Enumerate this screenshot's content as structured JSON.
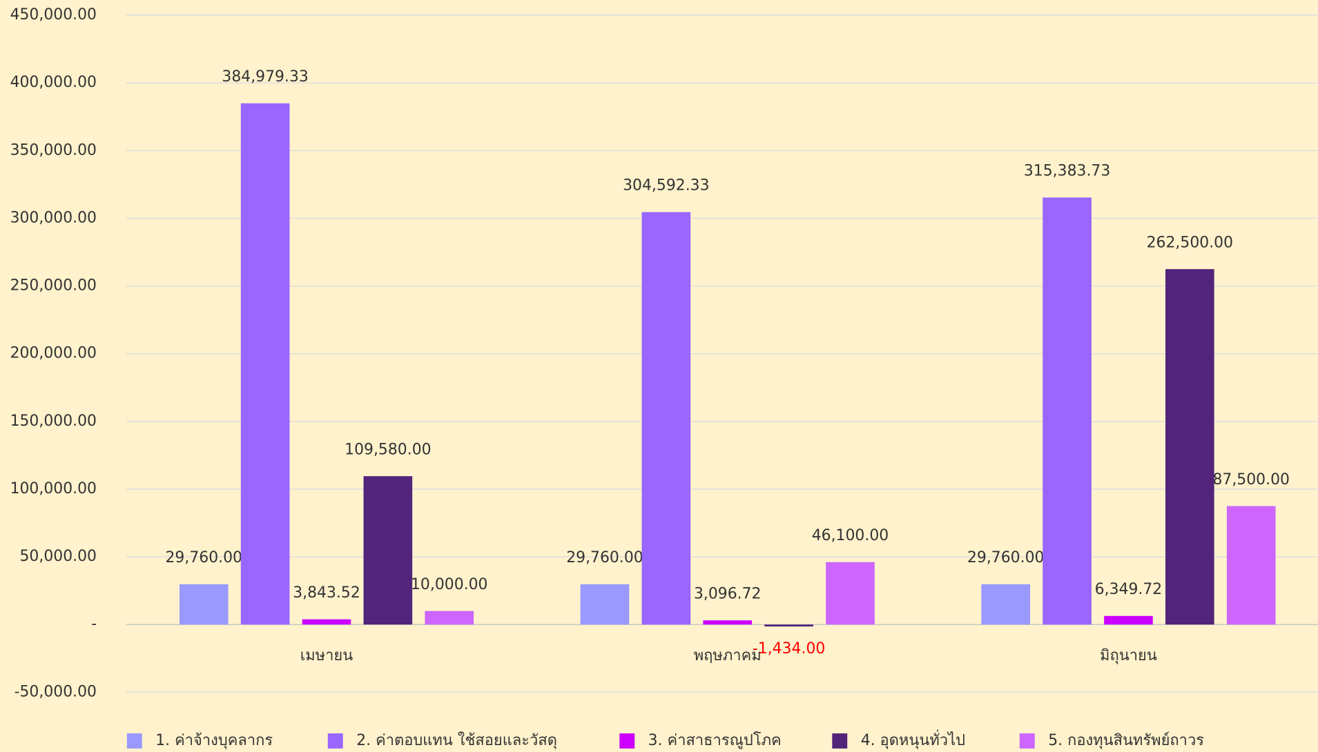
{
  "chart_data": {
    "type": "bar",
    "categories": [
      "เมษายน",
      "พฤษภาคม",
      "มิถุนายน"
    ],
    "series": [
      {
        "name": "1. ค่าจ้างบุคลากร",
        "color": "#9999ff",
        "values": [
          29760,
          29760,
          29760
        ],
        "value_labels": [
          "29,760.00",
          "29,760.00",
          "29,760.00"
        ]
      },
      {
        "name": "2. ค่าตอบแทน ใช้สอยและวัสดุ",
        "color": "#9966ff",
        "values": [
          384979.33,
          304592.33,
          315383.73
        ],
        "value_labels": [
          "384,979.33",
          "304,592.33",
          "315,383.73"
        ]
      },
      {
        "name": "3. ค่าสาธารณูปโภค",
        "color": "#cc00ff",
        "values": [
          3843.52,
          3096.72,
          6349.72
        ],
        "value_labels": [
          "3,843.52",
          "3,096.72",
          "6,349.72"
        ]
      },
      {
        "name": "4. อุดหนุนทั่วไป",
        "color": "#52247a",
        "values": [
          109580,
          -1434,
          262500
        ],
        "value_labels": [
          "109,580.00",
          "-1,434.00",
          "262,500.00"
        ]
      },
      {
        "name": "5. กองทุนสินทรัพย์ถาวร",
        "color": "#cc66ff",
        "values": [
          10000,
          46100,
          87500
        ],
        "value_labels": [
          "10,000.00",
          "46,100.00",
          "87,500.00"
        ]
      }
    ],
    "ylim": [
      -50000,
      450000
    ],
    "yticks": [
      {
        "value": -50000,
        "label": "-50,000.00"
      },
      {
        "value": 0,
        "label": "-"
      },
      {
        "value": 50000,
        "label": "50,000.00"
      },
      {
        "value": 100000,
        "label": "100,000.00"
      },
      {
        "value": 150000,
        "label": "150,000.00"
      },
      {
        "value": 200000,
        "label": "200,000.00"
      },
      {
        "value": 250000,
        "label": "250,000.00"
      },
      {
        "value": 300000,
        "label": "300,000.00"
      },
      {
        "value": 350000,
        "label": "350,000.00"
      },
      {
        "value": 400000,
        "label": "400,000.00"
      },
      {
        "value": 450000,
        "label": "450,000.00"
      }
    ],
    "grid": true,
    "legend": "bottom",
    "negative_label_color": "#ff0000"
  }
}
